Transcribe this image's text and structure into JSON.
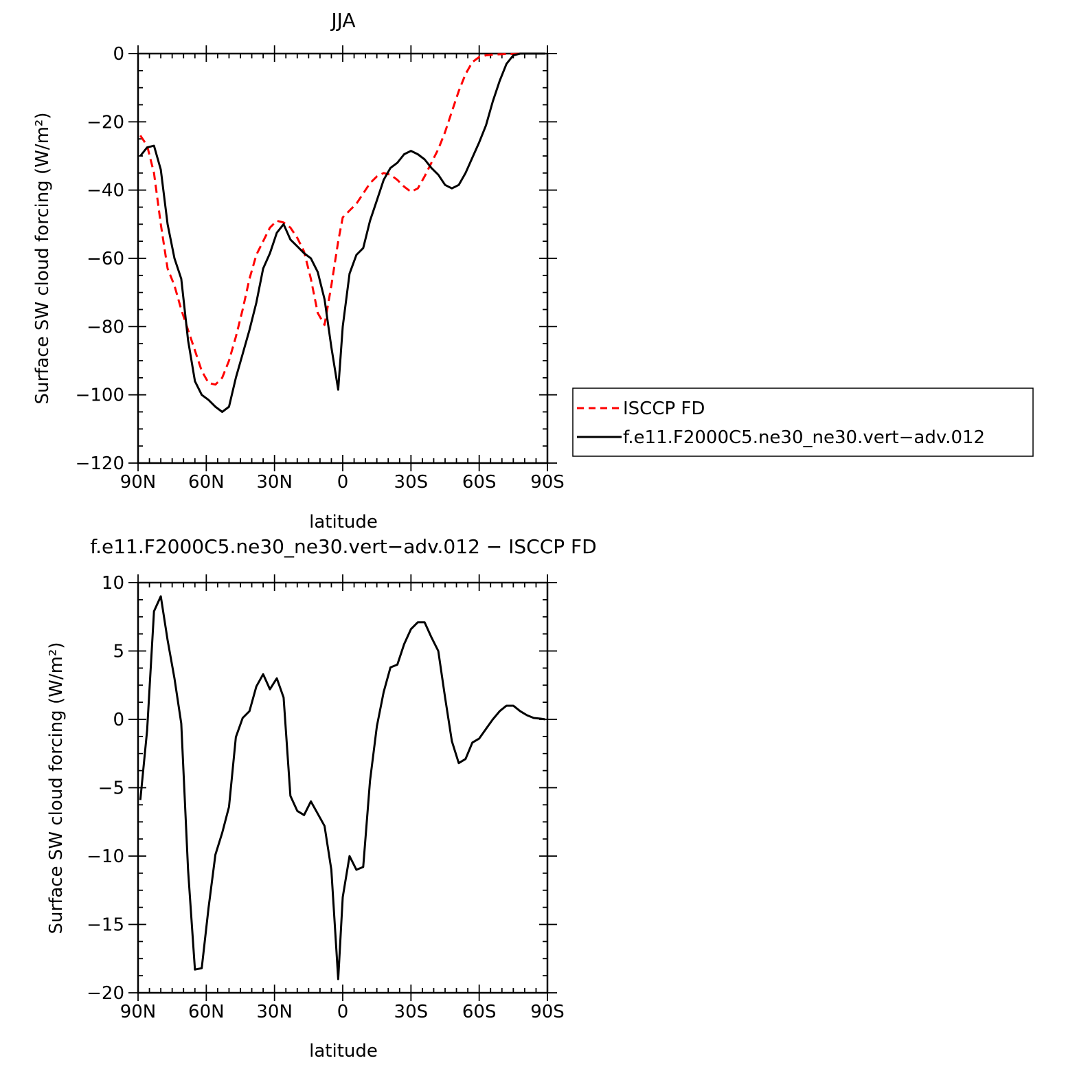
{
  "chart_data": [
    {
      "type": "line",
      "title": "JJA",
      "xlabel": "latitude",
      "ylabel": "Surface SW cloud forcing (W/m²)",
      "xlim": [
        90,
        -90
      ],
      "ylim": [
        -120,
        0
      ],
      "x_ticks": [
        90,
        60,
        30,
        0,
        -30,
        -60,
        -90
      ],
      "x_tick_labels": [
        "90N",
        "60N",
        "30N",
        "0",
        "30S",
        "60S",
        "90S"
      ],
      "y_ticks": [
        0,
        -20,
        -40,
        -60,
        -80,
        -100,
        -120
      ],
      "y_tick_labels": [
        "0",
        "−20",
        "−40",
        "−60",
        "−80",
        "−100",
        "−120"
      ],
      "legend_position": "right",
      "series": [
        {
          "name": "ISCCP FD",
          "color": "#ff0000",
          "dash": "dashed",
          "x": [
            89,
            86,
            83,
            80,
            77,
            74,
            71,
            68,
            65,
            62,
            59,
            56,
            53,
            50,
            47,
            44,
            41,
            38,
            35,
            32,
            29,
            26,
            23,
            20,
            17,
            14,
            11,
            8,
            5,
            2,
            0,
            -3,
            -6,
            -9,
            -12,
            -15,
            -18,
            -21,
            -24,
            -27,
            -30,
            -33,
            -36,
            -39,
            -42,
            -45,
            -48,
            -51,
            -54,
            -57,
            -60,
            -63,
            -66,
            -69,
            -72,
            -75,
            -78,
            -81,
            -84,
            -87,
            -89
          ],
          "y": [
            -24,
            -27,
            -35,
            -50,
            -63,
            -68,
            -75,
            -81,
            -87,
            -93,
            -96.5,
            -97,
            -95,
            -90,
            -83,
            -75,
            -66,
            -59,
            -55,
            -51,
            -49,
            -49.5,
            -51,
            -54,
            -58,
            -66,
            -76,
            -79.5,
            -68,
            -55,
            -48,
            -46,
            -44,
            -41,
            -38,
            -36,
            -35,
            -35.5,
            -37,
            -39,
            -40.5,
            -39.5,
            -36,
            -32,
            -28,
            -23,
            -17,
            -11,
            -6,
            -2.5,
            -1,
            -0.5,
            -0.3,
            -0.2,
            -0.1,
            -0.1,
            0,
            0,
            0,
            0,
            0
          ]
        },
        {
          "name": "f.e11.F2000C5.ne30_ne30.vert−adv.012",
          "color": "#000000",
          "dash": "solid",
          "x": [
            89,
            86,
            83,
            80,
            77,
            74,
            71,
            68,
            65,
            62,
            59,
            56,
            53,
            50,
            47,
            44,
            41,
            38,
            35,
            32,
            29,
            26,
            23,
            20,
            17,
            14,
            11,
            8,
            5,
            2,
            0,
            -3,
            -6,
            -9,
            -12,
            -15,
            -18,
            -21,
            -24,
            -27,
            -30,
            -33,
            -36,
            -39,
            -42,
            -45,
            -48,
            -51,
            -54,
            -57,
            -60,
            -63,
            -66,
            -69,
            -72,
            -75,
            -78,
            -81,
            -84,
            -87,
            -89
          ],
          "y": [
            -30,
            -27.5,
            -27,
            -34,
            -50,
            -60,
            -66,
            -84,
            -96,
            -100,
            -101.5,
            -103.5,
            -105,
            -103.5,
            -95,
            -88,
            -81,
            -73,
            -63,
            -58.5,
            -52.5,
            -50,
            -54.5,
            -56.5,
            -58.5,
            -60,
            -64,
            -72,
            -86,
            -98.5,
            -80,
            -64.5,
            -59,
            -57,
            -49,
            -43,
            -37,
            -33.5,
            -32,
            -29.5,
            -28.5,
            -29.5,
            -31,
            -33.5,
            -35.5,
            -38.5,
            -39.5,
            -38.5,
            -35,
            -30.5,
            -26,
            -21,
            -14,
            -8,
            -3,
            -0.5,
            0,
            0,
            0,
            0,
            0
          ]
        }
      ]
    },
    {
      "type": "line",
      "title": "f.e11.F2000C5.ne30_ne30.vert−adv.012 − ISCCP FD",
      "xlabel": "latitude",
      "ylabel": "Surface SW cloud forcing (W/m²)",
      "xlim": [
        90,
        -90
      ],
      "ylim": [
        -20,
        10
      ],
      "x_ticks": [
        90,
        60,
        30,
        0,
        -30,
        -60,
        -90
      ],
      "x_tick_labels": [
        "90N",
        "60N",
        "30N",
        "0",
        "30S",
        "60S",
        "90S"
      ],
      "y_ticks": [
        10,
        5,
        0,
        -5,
        -10,
        -15,
        -20
      ],
      "y_tick_labels": [
        "10",
        "5",
        "0",
        "−5",
        "−10",
        "−15",
        "−20"
      ],
      "series": [
        {
          "color": "#000000",
          "dash": "solid",
          "x": [
            89,
            86,
            83,
            80,
            77,
            74,
            71,
            68,
            65,
            62,
            59,
            56,
            53,
            50,
            47,
            44,
            41,
            38,
            35,
            32,
            29,
            26,
            23,
            20,
            17,
            14,
            11,
            8,
            5,
            2,
            0,
            -3,
            -6,
            -9,
            -12,
            -15,
            -18,
            -21,
            -24,
            -27,
            -30,
            -33,
            -36,
            -39,
            -42,
            -45,
            -48,
            -51,
            -54,
            -57,
            -60,
            -63,
            -66,
            -69,
            -72,
            -75,
            -78,
            -81,
            -84,
            -87,
            -89
          ],
          "y": [
            -5.9,
            -0.8,
            7.9,
            9.0,
            5.8,
            3.0,
            -0.3,
            -11.0,
            -18.3,
            -18.2,
            -13.8,
            -9.9,
            -8.3,
            -6.4,
            -1.3,
            0.1,
            0.6,
            2.4,
            3.3,
            2.2,
            3.0,
            1.6,
            -5.6,
            -6.7,
            -7.0,
            -6.0,
            -6.9,
            -7.8,
            -11.0,
            -19.0,
            -13.0,
            -10.0,
            -11.0,
            -10.8,
            -4.5,
            -0.5,
            2.0,
            3.8,
            4.0,
            5.5,
            6.6,
            7.1,
            7.1,
            6.0,
            5.0,
            1.6,
            -1.6,
            -3.2,
            -2.9,
            -1.7,
            -1.4,
            -0.7,
            0.0,
            0.6,
            1.0,
            1.0,
            0.6,
            0.3,
            0.1,
            0.05,
            0.0
          ]
        }
      ]
    }
  ]
}
